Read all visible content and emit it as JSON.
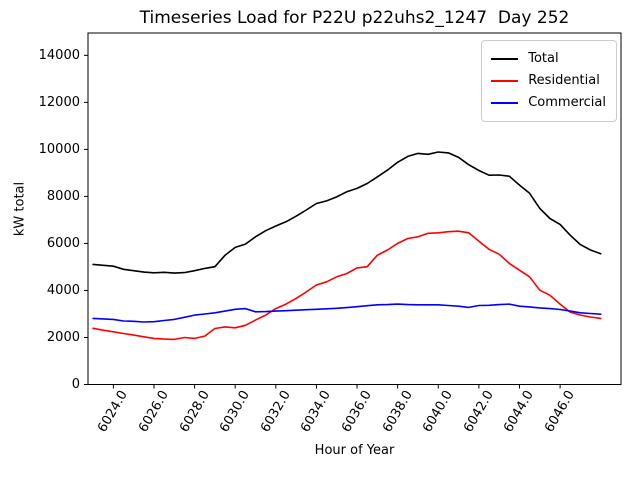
{
  "chart_data": {
    "type": "line",
    "title": "Timeseries Load for P22U p22uhs2_1247  Day 252",
    "xlabel": "Hour of Year",
    "ylabel": "kW total",
    "grid": false,
    "legend_position": "upper right",
    "legend_border_color": "#cccccc",
    "xlim": [
      6022.75,
      6049.0
    ],
    "ylim": [
      0,
      14950
    ],
    "x_ticks": [
      6024,
      6026,
      6028,
      6030,
      6032,
      6034,
      6036,
      6038,
      6040,
      6042,
      6044,
      6046
    ],
    "x_tick_labels": [
      "6024.0",
      "6026.0",
      "6028.0",
      "6030.0",
      "6032.0",
      "6034.0",
      "6036.0",
      "6038.0",
      "6040.0",
      "6042.0",
      "6044.0",
      "6046.0"
    ],
    "x_tick_rotation": 60,
    "y_ticks": [
      0,
      2000,
      4000,
      6000,
      8000,
      10000,
      12000,
      14000
    ],
    "y_tick_labels": [
      "0",
      "2000",
      "4000",
      "6000",
      "8000",
      "10000",
      "12000",
      "14000"
    ],
    "x": [
      6023,
      6023.5,
      6024,
      6024.5,
      6025,
      6025.5,
      6026,
      6026.5,
      6027,
      6027.5,
      6028,
      6028.5,
      6029,
      6029.5,
      6030,
      6030.5,
      6031,
      6031.5,
      6032,
      6032.5,
      6033,
      6033.5,
      6034,
      6034.5,
      6035,
      6035.5,
      6036,
      6036.5,
      6037,
      6037.5,
      6038,
      6038.5,
      6039,
      6039.5,
      6040,
      6040.5,
      6041,
      6041.5,
      6042,
      6042.5,
      6043,
      6043.5,
      6044,
      6044.5,
      6045,
      6045.5,
      6046,
      6046.5,
      6047,
      6047.5,
      6048
    ],
    "series": [
      {
        "name": "Total",
        "color": "#000000",
        "values": [
          5110,
          5070,
          5030,
          4900,
          4840,
          4780,
          4750,
          4770,
          4740,
          4760,
          4840,
          4940,
          5010,
          5500,
          5830,
          5970,
          6280,
          6540,
          6740,
          6920,
          7160,
          7420,
          7700,
          7810,
          7980,
          8200,
          8340,
          8550,
          8830,
          9120,
          9450,
          9700,
          9830,
          9790,
          9890,
          9850,
          9660,
          9350,
          9100,
          8900,
          8910,
          8860,
          8480,
          8130,
          7490,
          7060,
          6810,
          6350,
          5950,
          5720,
          5560
        ]
      },
      {
        "name": "Residential",
        "color": "#ff0000",
        "values": [
          2390,
          2310,
          2240,
          2170,
          2100,
          2030,
          1960,
          1930,
          1920,
          2000,
          1960,
          2060,
          2380,
          2450,
          2410,
          2520,
          2740,
          2950,
          3230,
          3420,
          3660,
          3940,
          4230,
          4370,
          4580,
          4720,
          4960,
          5010,
          5500,
          5720,
          6000,
          6210,
          6280,
          6430,
          6450,
          6500,
          6520,
          6450,
          6100,
          5750,
          5540,
          5150,
          4860,
          4580,
          4010,
          3800,
          3420,
          3080,
          2950,
          2870,
          2810
        ]
      },
      {
        "name": "Commercial",
        "color": "#0000ff",
        "values": [
          2810,
          2790,
          2770,
          2700,
          2690,
          2660,
          2670,
          2720,
          2770,
          2860,
          2950,
          3000,
          3050,
          3120,
          3200,
          3230,
          3090,
          3100,
          3120,
          3140,
          3160,
          3180,
          3200,
          3220,
          3240,
          3270,
          3310,
          3350,
          3390,
          3400,
          3420,
          3400,
          3390,
          3390,
          3390,
          3360,
          3330,
          3280,
          3360,
          3370,
          3400,
          3420,
          3330,
          3300,
          3260,
          3230,
          3190,
          3120,
          3050,
          3020,
          2990
        ]
      }
    ]
  }
}
